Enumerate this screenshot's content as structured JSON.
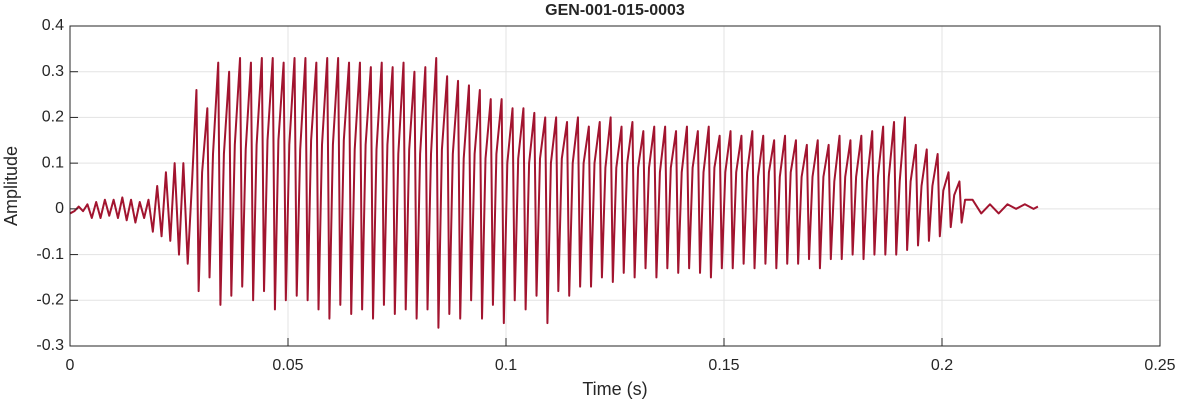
{
  "chart_data": {
    "type": "line",
    "title": "GEN-001-015-0003",
    "x_label": "Time (s)",
    "y_label": "Amplitude",
    "xlim": [
      0,
      0.25
    ],
    "xticks": [
      0,
      0.05,
      0.1,
      0.15,
      0.2,
      0.25
    ],
    "ylim": [
      -0.3,
      0.4
    ],
    "yticks": [
      -0.3,
      -0.2,
      -0.1,
      0,
      0.1,
      0.2,
      0.3,
      0.4
    ],
    "grid": true,
    "series": [
      {
        "color": "#a2142f",
        "x": [
          0,
          0.001,
          0.002,
          0.003,
          0.004,
          0.005,
          0.006,
          0.007,
          0.008,
          0.009,
          0.01,
          0.011,
          0.012,
          0.013,
          0.014,
          0.015,
          0.016,
          0.017,
          0.018,
          0.019,
          0.02,
          0.021,
          0.022,
          0.023,
          0.024,
          0.025,
          0.026,
          0.027,
          0.028,
          0.029,
          0.0295,
          0.0303,
          0.0315,
          0.032,
          0.0328,
          0.034,
          0.0345,
          0.0353,
          0.0365,
          0.037,
          0.0378,
          0.039,
          0.0395,
          0.0403,
          0.0415,
          0.042,
          0.0428,
          0.044,
          0.0445,
          0.0453,
          0.0465,
          0.047,
          0.0478,
          0.049,
          0.0495,
          0.0503,
          0.0515,
          0.052,
          0.0528,
          0.054,
          0.0545,
          0.0553,
          0.0565,
          0.057,
          0.0578,
          0.059,
          0.0595,
          0.0603,
          0.0615,
          0.062,
          0.0628,
          0.064,
          0.0645,
          0.0653,
          0.0665,
          0.067,
          0.0678,
          0.069,
          0.0695,
          0.0703,
          0.0715,
          0.072,
          0.0728,
          0.074,
          0.0745,
          0.0753,
          0.0765,
          0.077,
          0.0778,
          0.079,
          0.0795,
          0.0803,
          0.0815,
          0.082,
          0.0828,
          0.084,
          0.0845,
          0.0853,
          0.0865,
          0.087,
          0.0878,
          0.089,
          0.0895,
          0.0903,
          0.0915,
          0.092,
          0.0928,
          0.094,
          0.0945,
          0.0953,
          0.0965,
          0.097,
          0.0978,
          0.099,
          0.0995,
          0.1003,
          0.1015,
          0.102,
          0.1028,
          0.104,
          0.1045,
          0.1053,
          0.1065,
          0.107,
          0.1078,
          0.109,
          0.1095,
          0.1103,
          0.1115,
          0.112,
          0.1128,
          0.114,
          0.1145,
          0.1153,
          0.1165,
          0.117,
          0.1178,
          0.119,
          0.1195,
          0.1203,
          0.1215,
          0.122,
          0.1228,
          0.124,
          0.1245,
          0.1253,
          0.1265,
          0.127,
          0.1278,
          0.129,
          0.1295,
          0.1303,
          0.1315,
          0.132,
          0.1328,
          0.134,
          0.1345,
          0.1353,
          0.1365,
          0.137,
          0.1378,
          0.139,
          0.1395,
          0.1403,
          0.1415,
          0.142,
          0.1428,
          0.144,
          0.1445,
          0.1453,
          0.1465,
          0.147,
          0.1478,
          0.149,
          0.1495,
          0.1503,
          0.1515,
          0.152,
          0.1528,
          0.154,
          0.1545,
          0.1553,
          0.1565,
          0.157,
          0.1578,
          0.159,
          0.1595,
          0.1603,
          0.1615,
          0.162,
          0.1628,
          0.164,
          0.1645,
          0.1653,
          0.1665,
          0.167,
          0.1678,
          0.169,
          0.1695,
          0.1703,
          0.1715,
          0.172,
          0.1728,
          0.174,
          0.1745,
          0.1753,
          0.1765,
          0.177,
          0.1778,
          0.179,
          0.1795,
          0.1803,
          0.1815,
          0.182,
          0.1828,
          0.184,
          0.1845,
          0.1853,
          0.1865,
          0.187,
          0.1878,
          0.189,
          0.1895,
          0.1903,
          0.1915,
          0.192,
          0.1928,
          0.194,
          0.1945,
          0.1953,
          0.1965,
          0.197,
          0.1978,
          0.199,
          0.1995,
          0.2003,
          0.2015,
          0.202,
          0.2028,
          0.204,
          0.2045,
          0.2053,
          0.207,
          0.209,
          0.211,
          0.213,
          0.215,
          0.217,
          0.219,
          0.221,
          0.222
        ],
        "values": [
          -0.01,
          -0.005,
          0.005,
          -0.005,
          0.01,
          -0.02,
          0.015,
          -0.02,
          0.02,
          -0.015,
          0.02,
          -0.02,
          0.025,
          -0.025,
          0.02,
          -0.03,
          0.015,
          -0.02,
          0.02,
          -0.05,
          0.05,
          -0.06,
          0.08,
          -0.07,
          0.1,
          -0.1,
          0.1,
          -0.12,
          0.06,
          0.26,
          -0.18,
          0.08,
          0.22,
          -0.15,
          0.12,
          0.32,
          -0.21,
          0.12,
          0.3,
          -0.19,
          0.14,
          0.33,
          -0.17,
          0.13,
          0.32,
          -0.2,
          0.14,
          0.33,
          -0.18,
          0.15,
          0.33,
          -0.22,
          0.15,
          0.32,
          -0.2,
          0.14,
          0.33,
          -0.19,
          0.13,
          0.33,
          -0.2,
          0.15,
          0.32,
          -0.22,
          0.14,
          0.33,
          -0.24,
          0.14,
          0.33,
          -0.21,
          0.15,
          0.32,
          -0.23,
          0.13,
          0.32,
          -0.22,
          0.14,
          0.31,
          -0.24,
          0.13,
          0.32,
          -0.21,
          0.14,
          0.31,
          -0.23,
          0.12,
          0.32,
          -0.22,
          0.13,
          0.3,
          -0.24,
          0.12,
          0.31,
          -0.22,
          0.12,
          0.33,
          -0.26,
          0.13,
          0.29,
          -0.23,
          0.12,
          0.28,
          -0.24,
          0.11,
          0.27,
          -0.2,
          0.12,
          0.26,
          -0.24,
          0.11,
          0.24,
          -0.21,
          0.12,
          0.24,
          -0.25,
          0.1,
          0.22,
          -0.2,
          0.11,
          0.22,
          -0.22,
          0.1,
          0.21,
          -0.19,
          0.11,
          0.2,
          -0.25,
          0.1,
          0.2,
          -0.18,
          0.11,
          0.19,
          -0.19,
          0.1,
          0.2,
          -0.17,
          0.1,
          0.18,
          -0.17,
          0.1,
          0.19,
          -0.15,
          0.09,
          0.2,
          -0.16,
          0.09,
          0.18,
          -0.14,
          0.1,
          0.19,
          -0.15,
          0.09,
          0.17,
          -0.13,
          0.09,
          0.18,
          -0.15,
          0.08,
          0.18,
          -0.13,
          0.09,
          0.17,
          -0.14,
          0.08,
          0.18,
          -0.13,
          0.09,
          0.17,
          -0.14,
          0.08,
          0.18,
          -0.15,
          0.09,
          0.16,
          -0.13,
          0.08,
          0.17,
          -0.13,
          0.08,
          0.16,
          -0.12,
          0.08,
          0.17,
          -0.13,
          0.07,
          0.16,
          -0.12,
          0.08,
          0.15,
          -0.13,
          0.07,
          0.16,
          -0.12,
          0.08,
          0.15,
          -0.12,
          0.07,
          0.14,
          -0.11,
          0.07,
          0.15,
          -0.13,
          0.07,
          0.14,
          -0.11,
          0.06,
          0.16,
          -0.11,
          0.07,
          0.15,
          -0.1,
          0.07,
          0.16,
          -0.11,
          0.06,
          0.17,
          -0.1,
          0.07,
          0.18,
          -0.1,
          0.07,
          0.19,
          -0.1,
          0.06,
          0.2,
          -0.09,
          0.06,
          0.14,
          -0.08,
          0.05,
          0.13,
          -0.07,
          0.05,
          0.12,
          -0.06,
          0.04,
          0.08,
          -0.04,
          0.03,
          0.06,
          -0.03,
          0.02,
          0.02,
          -0.01,
          0.01,
          -0.01,
          0.01,
          0,
          0.01,
          0,
          0.005
        ]
      }
    ]
  }
}
